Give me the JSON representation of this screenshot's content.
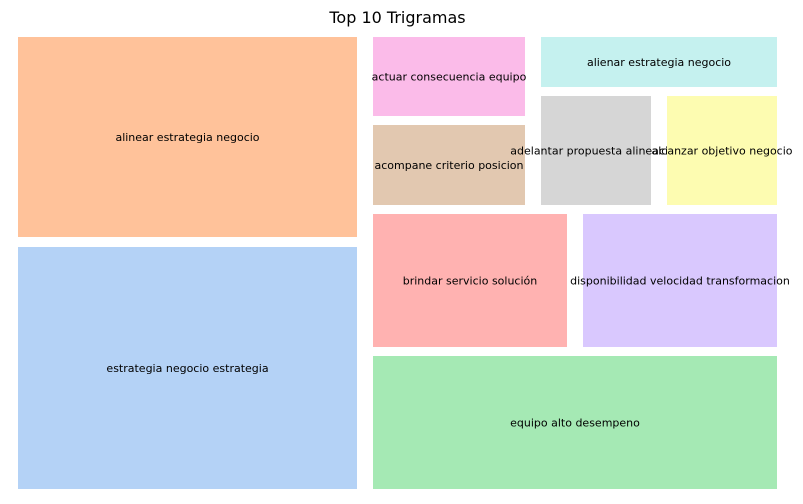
{
  "chart_data": {
    "type": "treemap",
    "title": "Top 10 Trigramas",
    "items": [
      {
        "label": "alinear estrategia negocio",
        "value": 2.0,
        "color": "#ffc29a"
      },
      {
        "label": "estrategia negocio estrategia",
        "value": 2.45,
        "color": "#b4d2f6"
      },
      {
        "label": "actuar consecuencia equipo",
        "value": 0.72,
        "color": "#fbbbe9"
      },
      {
        "label": "acompane criterio posicion",
        "value": 0.72,
        "color": "#e2c8b0"
      },
      {
        "label": "alienar estrategia negocio",
        "value": 0.72,
        "color": "#c5f1ef"
      },
      {
        "label": "adelantar propuesta alineacion",
        "value": 0.72,
        "color": "#d6d6d6"
      },
      {
        "label": "alcanzar objetivo negocio",
        "value": 0.72,
        "color": "#fdfcb1"
      },
      {
        "label": "brindar servicio solución",
        "value": 1.17,
        "color": "#ffb2b1"
      },
      {
        "label": "disponibilidad velocidad transformacion",
        "value": 1.17,
        "color": "#d9c8fe"
      },
      {
        "label": "equipo alto desempeno",
        "value": 2.0,
        "color": "#a5e9b4"
      }
    ]
  }
}
